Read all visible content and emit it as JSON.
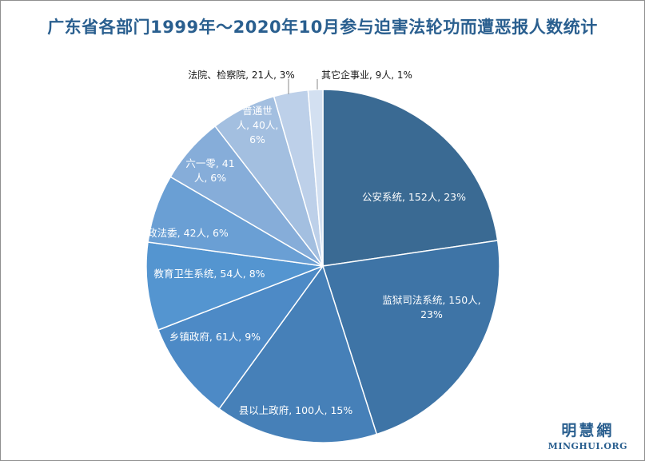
{
  "chart_data": {
    "type": "pie",
    "title": "广东省各部门1999年～2020年10月参与迫害法轮功而遭恶报人数统计",
    "slices": [
      {
        "name": "公安系统",
        "value": 152,
        "percent": "23%",
        "color": "#3a6a93",
        "label_lines": [
          "公安系统, 152人, 23%"
        ]
      },
      {
        "name": "监狱司法系统",
        "value": 150,
        "percent": "23%",
        "color": "#3e74a6",
        "label_lines": [
          "监狱司法系统, 150人,",
          "23%"
        ]
      },
      {
        "name": "县以上政府",
        "value": 100,
        "percent": "15%",
        "color": "#4680b8",
        "label_lines": [
          "县以上政府, 100人, 15%"
        ]
      },
      {
        "name": "乡镇政府",
        "value": 61,
        "percent": "9%",
        "color": "#4d8ac6",
        "label_lines": [
          "乡镇政府, 61人, 9%"
        ]
      },
      {
        "name": "教育卫生系统",
        "value": 54,
        "percent": "8%",
        "color": "#5495d0",
        "label_lines": [
          "教育卫生系统, 54人, 8%"
        ]
      },
      {
        "name": "政法委",
        "value": 42,
        "percent": "6%",
        "color": "#6a9fd4",
        "label_lines": [
          "政法委, 42人, 6%"
        ]
      },
      {
        "name": "六一零",
        "value": 41,
        "percent": "6%",
        "color": "#86add9",
        "label_lines": [
          "六一零, 41",
          "人, 6%"
        ]
      },
      {
        "name": "普通世人",
        "value": 40,
        "percent": "6%",
        "color": "#a3bfe0",
        "label_lines": [
          "普通世",
          "人, 40人,",
          "6%"
        ]
      },
      {
        "name": "法院、检察院",
        "value": 21,
        "percent": "3%",
        "color": "#bdd0e9",
        "label_lines": [
          "法院、检察院, 21人, 3%"
        ]
      },
      {
        "name": "其它企事业",
        "value": 9,
        "percent": "1%",
        "color": "#d3e0f1",
        "label_lines": [
          "其它企事业, 9人, 1%"
        ]
      }
    ],
    "legend": "none"
  },
  "watermark": {
    "cn": "明慧網",
    "en": "MINGHUI.ORG"
  }
}
